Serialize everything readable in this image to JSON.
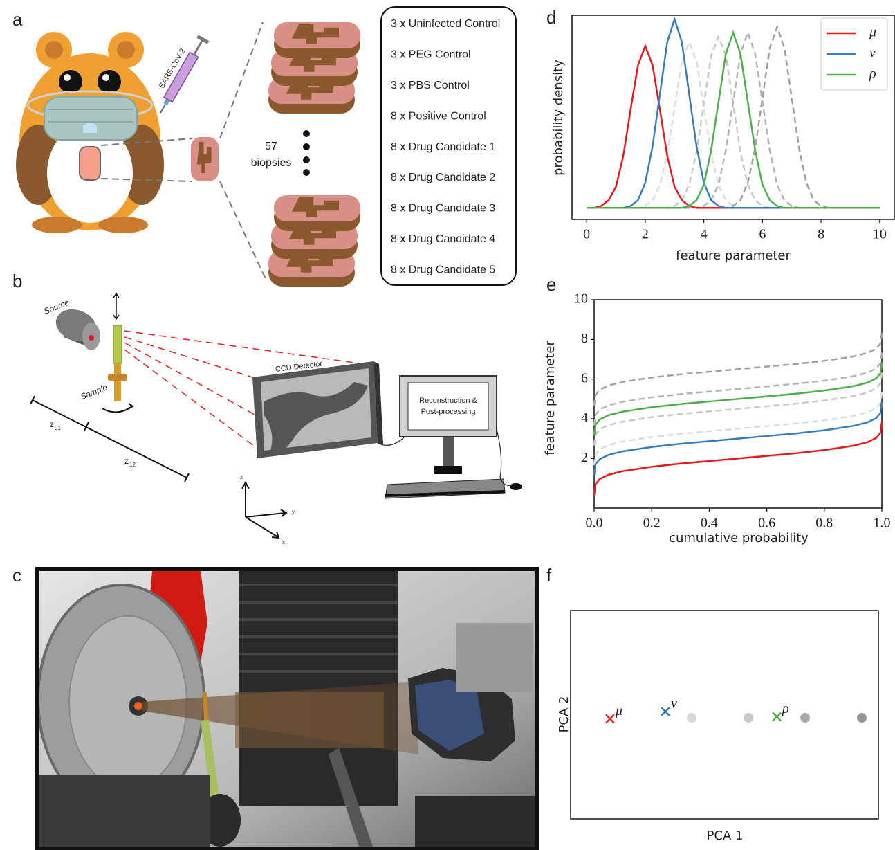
{
  "panel_labels": [
    "a",
    "b",
    "c",
    "d",
    "e",
    "f"
  ],
  "panel_a": {
    "syringe_label": "SARS-CoV-2",
    "biopsy_count": "57",
    "biopsy_text": "biopsies",
    "groups": [
      {
        "text": "3 x Uninfected Control",
        "color": "#2e3192"
      },
      {
        "text": "3 x PEG Control",
        "color": "#2e3192"
      },
      {
        "text": "3 x PBS Control",
        "color": "#2e3192"
      },
      {
        "text": "8 x Positive Control",
        "color": "#be1e2d"
      },
      {
        "text": "8 x Drug Candidate 1",
        "color": "#ed1c24"
      },
      {
        "text": "8 x Drug Candidate 2",
        "color": "#2b8acb"
      },
      {
        "text": "8 x Drug Candidate 3",
        "color": "#1a9e48"
      },
      {
        "text": "8 x Drug Candidate 4",
        "color": "#7b3f98"
      },
      {
        "text": "8 x Drug Candidate 5",
        "color": "#f26522"
      }
    ]
  },
  "panel_b": {
    "source": "Source",
    "sample": "Sample",
    "z01": {
      "symbol": "z",
      "subscript": "01"
    },
    "z12": {
      "symbol": "z",
      "subscript": "12"
    },
    "detector": "CCD Detector",
    "computer": [
      "Reconstruction &",
      "Post-processing"
    ],
    "axes": {
      "z": "z",
      "y": "y",
      "x": "x"
    }
  },
  "chart_data": [
    {
      "type": "line",
      "xlabel": "feature parameter",
      "ylabel": "probability density",
      "legend": "upper right",
      "xlim": [
        -0.5,
        10.5
      ],
      "ylim": [
        -0.06,
        1.0
      ],
      "xticks": [
        0,
        2,
        4,
        6,
        8,
        10
      ],
      "x": [
        0,
        0.25,
        0.5,
        0.75,
        1,
        1.25,
        1.5,
        1.75,
        2,
        2.25,
        2.5,
        2.75,
        3,
        3.25,
        3.5,
        3.75,
        4,
        4.25,
        4.5,
        4.75,
        5,
        5.25,
        5.5,
        5.75,
        6,
        6.25,
        6.5,
        6.75,
        7,
        7.25,
        7.5,
        7.75,
        8,
        8.25,
        8.5,
        8.75,
        9,
        9.25,
        9.5,
        9.75,
        10
      ],
      "series": [
        {
          "color": "#dcdcdc",
          "style": "dashed",
          "values": [
            0,
            0,
            0,
            0,
            0,
            0,
            0,
            0,
            0.01,
            0.04,
            0.12,
            0.28,
            0.52,
            0.76,
            0.86,
            0.76,
            0.52,
            0.28,
            0.12,
            0.04,
            0.01,
            0,
            0,
            0,
            0,
            0,
            0,
            0,
            0,
            0,
            0,
            0,
            0,
            0,
            0,
            0,
            0,
            0,
            0,
            0,
            0
          ]
        },
        {
          "color": "#c8c8c8",
          "style": "dashed",
          "values": [
            0,
            0,
            0,
            0,
            0,
            0,
            0,
            0,
            0,
            0,
            0,
            0,
            0.01,
            0.04,
            0.12,
            0.29,
            0.54,
            0.79,
            0.89,
            0.79,
            0.54,
            0.29,
            0.12,
            0.04,
            0.01,
            0,
            0,
            0,
            0,
            0,
            0,
            0,
            0,
            0,
            0,
            0,
            0,
            0,
            0,
            0,
            0
          ]
        },
        {
          "color": "#b4b4b4",
          "style": "dashed",
          "values": [
            0,
            0,
            0,
            0,
            0,
            0,
            0,
            0,
            0,
            0,
            0,
            0,
            0,
            0,
            0,
            0,
            0.01,
            0.04,
            0.12,
            0.3,
            0.55,
            0.8,
            0.91,
            0.8,
            0.55,
            0.3,
            0.12,
            0.04,
            0.01,
            0,
            0,
            0,
            0,
            0,
            0,
            0,
            0,
            0,
            0,
            0,
            0
          ]
        },
        {
          "color": "#a0a0a0",
          "style": "dashed",
          "values": [
            0,
            0,
            0,
            0,
            0,
            0,
            0,
            0,
            0,
            0,
            0,
            0,
            0,
            0,
            0,
            0,
            0,
            0,
            0,
            0,
            0.01,
            0.04,
            0.13,
            0.31,
            0.57,
            0.83,
            0.94,
            0.83,
            0.57,
            0.31,
            0.13,
            0.04,
            0.01,
            0,
            0,
            0,
            0,
            0,
            0,
            0,
            0
          ]
        },
        {
          "name": "μ",
          "color": "#e41a1c",
          "style": "solid",
          "values": [
            0,
            0,
            0.01,
            0.04,
            0.11,
            0.27,
            0.51,
            0.74,
            0.84,
            0.74,
            0.51,
            0.27,
            0.11,
            0.04,
            0.01,
            0,
            0,
            0,
            0,
            0,
            0,
            0,
            0,
            0,
            0,
            0,
            0,
            0,
            0,
            0,
            0,
            0,
            0,
            0,
            0,
            0,
            0,
            0,
            0,
            0,
            0
          ]
        },
        {
          "name": "ν",
          "color": "#377eb8",
          "style": "solid",
          "values": [
            0,
            0,
            0,
            0,
            0,
            0,
            0.01,
            0.04,
            0.13,
            0.32,
            0.59,
            0.86,
            0.98,
            0.86,
            0.59,
            0.32,
            0.13,
            0.04,
            0.01,
            0,
            0,
            0,
            0,
            0,
            0,
            0,
            0,
            0,
            0,
            0,
            0,
            0,
            0,
            0,
            0,
            0,
            0,
            0,
            0,
            0,
            0
          ]
        },
        {
          "name": "ρ",
          "color": "#4daf4a",
          "style": "solid",
          "values": [
            0,
            0,
            0,
            0,
            0,
            0,
            0,
            0,
            0,
            0,
            0,
            0,
            0,
            0,
            0.01,
            0.04,
            0.12,
            0.3,
            0.55,
            0.8,
            0.91,
            0.8,
            0.55,
            0.3,
            0.12,
            0.04,
            0.01,
            0,
            0,
            0,
            0,
            0,
            0,
            0,
            0,
            0,
            0,
            0,
            0,
            0,
            0
          ]
        }
      ]
    },
    {
      "type": "line",
      "xlabel": "cumulative probability",
      "ylabel": "feature parameter",
      "xlim": [
        0,
        1
      ],
      "ylim": [
        -0.5,
        10
      ],
      "xticks": [
        {
          "value": 0,
          "label": "0.0"
        },
        {
          "value": 0.2,
          "label": "0.2"
        },
        {
          "value": 0.4,
          "label": "0.4"
        },
        {
          "value": 0.6,
          "label": "0.6"
        },
        {
          "value": 0.8,
          "label": "0.8"
        },
        {
          "value": 1,
          "label": "1.0"
        }
      ],
      "yticks": [
        2,
        4,
        6,
        8,
        10
      ],
      "x": [
        0,
        0.005,
        0.02,
        0.05,
        0.1,
        0.2,
        0.3,
        0.4,
        0.5,
        0.6,
        0.7,
        0.8,
        0.9,
        0.95,
        0.98,
        0.995,
        1
      ],
      "series": [
        {
          "color": "#dcdcdc",
          "style": "dashed",
          "values": [
            1.65,
            2.21,
            2.47,
            2.68,
            2.86,
            3.08,
            3.24,
            3.37,
            3.5,
            3.63,
            3.76,
            3.92,
            4.14,
            4.32,
            4.53,
            4.79,
            5.35
          ]
        },
        {
          "color": "#c8c8c8",
          "style": "dashed",
          "values": [
            2.65,
            3.21,
            3.47,
            3.68,
            3.86,
            4.08,
            4.24,
            4.37,
            4.5,
            4.63,
            4.76,
            4.92,
            5.14,
            5.32,
            5.53,
            5.79,
            6.35
          ]
        },
        {
          "color": "#b4b4b4",
          "style": "dashed",
          "values": [
            3.65,
            4.21,
            4.47,
            4.68,
            4.86,
            5.08,
            5.24,
            5.37,
            5.5,
            5.63,
            5.76,
            5.92,
            6.14,
            6.32,
            6.53,
            6.79,
            7.35
          ]
        },
        {
          "color": "#a0a0a0",
          "style": "dashed",
          "values": [
            4.65,
            5.21,
            5.47,
            5.68,
            5.86,
            6.08,
            6.24,
            6.37,
            6.5,
            6.63,
            6.76,
            6.92,
            7.14,
            7.32,
            7.53,
            7.79,
            8.35
          ]
        },
        {
          "color": "#e41a1c",
          "style": "solid",
          "values": [
            0.15,
            0.71,
            0.97,
            1.18,
            1.36,
            1.58,
            1.74,
            1.87,
            2,
            2.13,
            2.26,
            2.42,
            2.64,
            2.82,
            3.03,
            3.29,
            3.85
          ]
        },
        {
          "color": "#377eb8",
          "style": "solid",
          "values": [
            1.15,
            1.71,
            1.97,
            2.18,
            2.36,
            2.58,
            2.74,
            2.87,
            3,
            3.13,
            3.26,
            3.42,
            3.64,
            3.82,
            4.03,
            4.29,
            4.85
          ]
        },
        {
          "color": "#4daf4a",
          "style": "solid",
          "values": [
            3.15,
            3.71,
            3.97,
            4.18,
            4.36,
            4.58,
            4.74,
            4.87,
            5,
            5.13,
            5.26,
            5.42,
            5.64,
            5.82,
            6.03,
            6.29,
            6.85
          ]
        }
      ]
    },
    {
      "type": "scatter",
      "xlabel": "PCA 1",
      "ylabel": "PCA 2",
      "xlim": [
        0,
        10
      ],
      "ylim": [
        -1,
        1
      ],
      "series": [
        {
          "marker": "o",
          "colors": [
            "#d9d9d9",
            "#c8c8c8",
            "#a8a8a8",
            "#959595"
          ],
          "x": [
            3.93,
            5.78,
            7.62,
            9.46
          ],
          "values": [
            -0.03,
            -0.03,
            -0.03,
            -0.03
          ]
        },
        {
          "name": "μ",
          "marker": "x",
          "color": "#e41a1c",
          "x": [
            1.28
          ],
          "values": [
            -0.04
          ]
        },
        {
          "name": "ν",
          "marker": "x",
          "color": "#377eb8",
          "x": [
            3.08
          ],
          "values": [
            0.03
          ]
        },
        {
          "name": "ρ",
          "marker": "x",
          "color": "#4daf4a",
          "x": [
            6.7
          ],
          "values": [
            -0.02
          ]
        }
      ]
    }
  ]
}
